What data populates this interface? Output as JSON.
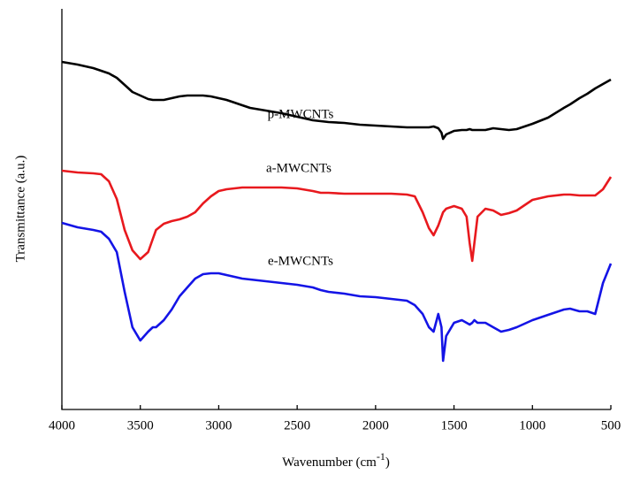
{
  "chart_data": {
    "type": "line",
    "x_label": [
      "Wavenumber (cm",
      "-1",
      ")"
    ],
    "y_label": "Transmittance (a.u.)",
    "xlim": [
      4000,
      500
    ],
    "xticks": [
      4000,
      3500,
      3000,
      2500,
      2000,
      1500,
      1000,
      500
    ],
    "ylim": [
      0,
      453
    ],
    "x": [
      4000,
      3900,
      3800,
      3750,
      3700,
      3650,
      3600,
      3550,
      3500,
      3450,
      3420,
      3400,
      3350,
      3300,
      3250,
      3200,
      3150,
      3100,
      3050,
      3000,
      2950,
      2900,
      2850,
      2800,
      2700,
      2600,
      2500,
      2400,
      2350,
      2300,
      2200,
      2100,
      2000,
      1900,
      1800,
      1750,
      1700,
      1660,
      1630,
      1600,
      1580,
      1570,
      1550,
      1500,
      1450,
      1420,
      1400,
      1384,
      1370,
      1350,
      1300,
      1250,
      1200,
      1150,
      1100,
      1000,
      900,
      800,
      760,
      700,
      650,
      600,
      550,
      500
    ],
    "series": [
      {
        "name": "p-MWCNTs",
        "color": "#000000",
        "values": [
          393,
          390,
          386,
          383,
          380,
          375,
          367,
          359,
          355,
          351,
          350,
          350,
          350,
          352,
          354,
          355,
          355,
          355,
          354,
          352,
          350,
          347,
          344,
          341,
          338,
          335,
          331,
          327,
          326,
          325,
          324,
          322,
          321,
          320,
          319,
          319,
          319,
          319,
          320,
          318,
          313,
          306,
          311,
          315,
          316,
          316,
          317,
          316,
          316,
          316,
          316,
          318,
          317,
          316,
          317,
          323,
          330,
          341,
          345,
          352,
          357,
          363,
          368,
          373
        ]
      },
      {
        "name": "a-MWCNTs",
        "color": "#e8191e",
        "values": [
          270,
          268,
          267,
          266,
          258,
          238,
          203,
          180,
          170,
          178,
          193,
          203,
          210,
          213,
          215,
          218,
          223,
          233,
          241,
          247,
          249,
          250,
          251,
          251,
          251,
          251,
          250,
          247,
          245,
          245,
          244,
          244,
          244,
          244,
          243,
          241,
          223,
          205,
          197,
          208,
          218,
          223,
          227,
          230,
          227,
          218,
          188,
          168,
          188,
          218,
          227,
          225,
          220,
          222,
          225,
          237,
          241,
          243,
          243,
          242,
          242,
          242,
          249,
          263
        ]
      },
      {
        "name": "e-MWCNTs",
        "color": "#1414e6",
        "values": [
          211,
          206,
          203,
          201,
          193,
          178,
          133,
          93,
          78,
          88,
          93,
          93,
          101,
          113,
          128,
          138,
          148,
          153,
          154,
          154,
          152,
          150,
          148,
          147,
          145,
          143,
          141,
          138,
          135,
          133,
          131,
          128,
          127,
          125,
          123,
          118,
          108,
          93,
          88,
          108,
          93,
          55,
          83,
          98,
          101,
          98,
          96,
          98,
          101,
          98,
          98,
          93,
          88,
          90,
          93,
          101,
          107,
          113,
          114,
          111,
          111,
          108,
          143,
          165
        ]
      }
    ]
  }
}
